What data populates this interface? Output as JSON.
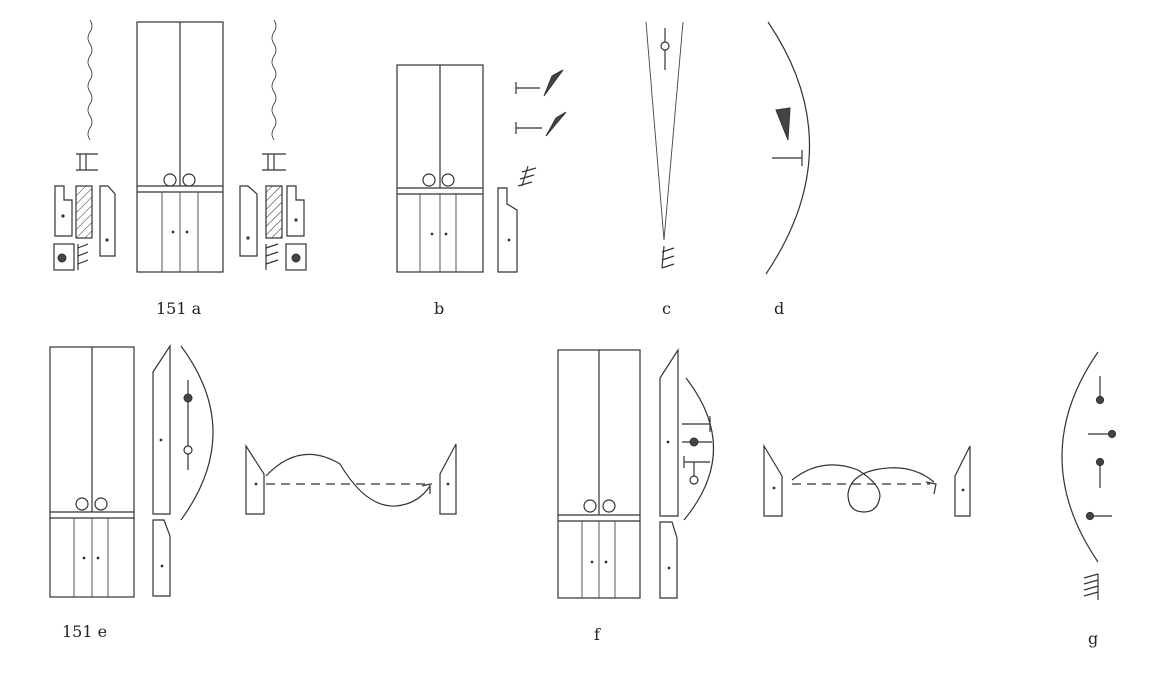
{
  "labels": {
    "a": "151 a",
    "b": "b",
    "c": "c",
    "d": "d",
    "e": "151 e",
    "f": "f",
    "g": "g"
  },
  "icons": [
    "cabinet-icon",
    "knob-icon",
    "gnomon-icon",
    "spring-icon",
    "pendulum-icon",
    "arc-icon",
    "arrow-icon",
    "hatch-icon"
  ],
  "colors": {
    "ink": "#333333",
    "background": "#ffffff"
  }
}
